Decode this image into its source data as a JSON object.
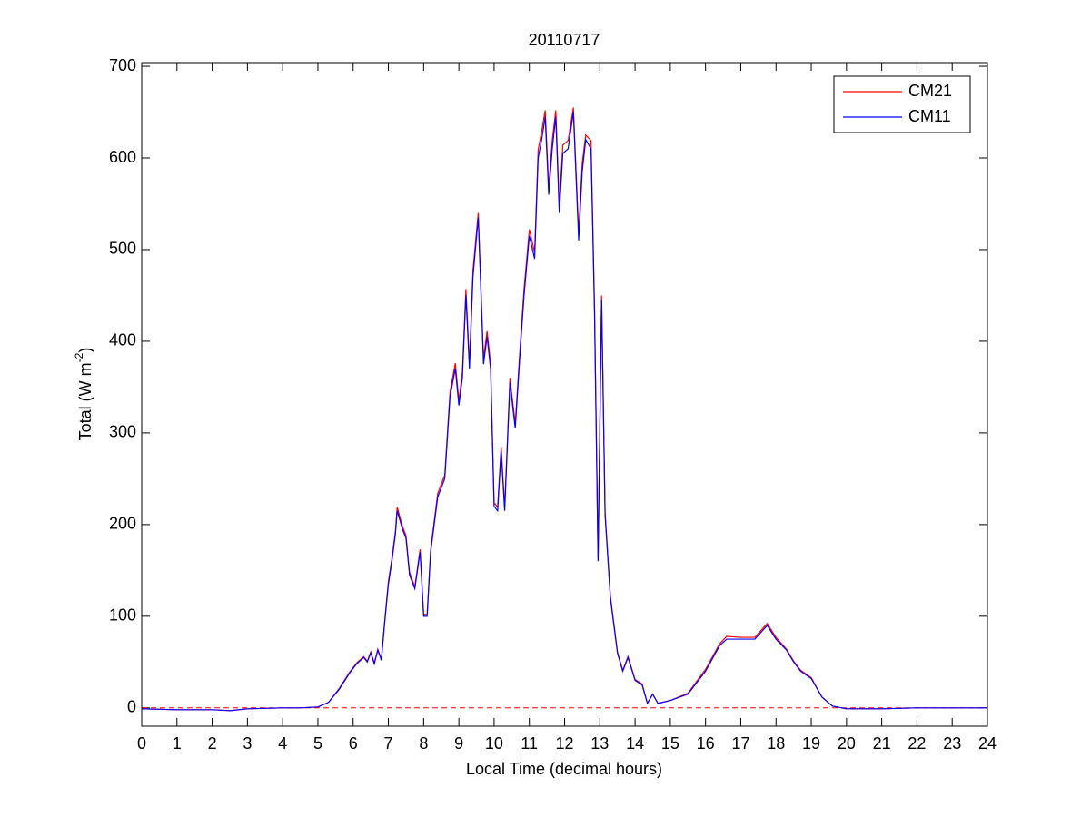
{
  "chart_data": {
    "type": "line",
    "title": "20110717",
    "xlabel": "Local Time (decimal hours)",
    "ylabel": {
      "text": "Total (W m",
      "superscript": "-2",
      "suffix": ")"
    },
    "x": [
      0,
      1,
      2,
      2.5,
      3,
      4,
      4.5,
      5,
      5.3,
      5.6,
      5.9,
      6.1,
      6.3,
      6.4,
      6.5,
      6.6,
      6.7,
      6.8,
      6.9,
      7.0,
      7.1,
      7.2,
      7.25,
      7.4,
      7.5,
      7.6,
      7.75,
      7.9,
      8.0,
      8.1,
      8.2,
      8.4,
      8.6,
      8.75,
      8.9,
      9.0,
      9.1,
      9.2,
      9.3,
      9.4,
      9.55,
      9.7,
      9.8,
      9.9,
      10.0,
      10.1,
      10.2,
      10.3,
      10.45,
      10.6,
      10.75,
      10.85,
      11.0,
      11.15,
      11.25,
      11.35,
      11.45,
      11.55,
      11.65,
      11.75,
      11.85,
      11.95,
      12.1,
      12.25,
      12.4,
      12.5,
      12.6,
      12.75,
      12.85,
      12.95,
      13.05,
      13.15,
      13.3,
      13.5,
      13.65,
      13.8,
      14.0,
      14.2,
      14.35,
      14.5,
      14.65,
      15.0,
      15.5,
      16.0,
      16.4,
      16.6,
      17.0,
      17.4,
      17.75,
      18.0,
      18.3,
      18.5,
      18.7,
      19.0,
      19.3,
      19.6,
      20,
      21,
      22,
      23,
      24
    ],
    "series": [
      {
        "name": "CM21",
        "color": "#ff0000",
        "values": [
          -1,
          -2,
          -2,
          -3,
          -1,
          0,
          0,
          1,
          6,
          21,
          39,
          49,
          56,
          51,
          61,
          49,
          64,
          53,
          97,
          138,
          163,
          193,
          219,
          198,
          188,
          148,
          132,
          173,
          102,
          102,
          173,
          234,
          254,
          345,
          376,
          335,
          366,
          457,
          376,
          477,
          540,
          381,
          411,
          376,
          224,
          219,
          285,
          219,
          360,
          310,
          401,
          457,
          522,
          497,
          609,
          629,
          652,
          568,
          619,
          652,
          548,
          614,
          619,
          655,
          518,
          594,
          625,
          619,
          437,
          163,
          450,
          213,
          122,
          61,
          41,
          56,
          31,
          26,
          5,
          15,
          5,
          8,
          16,
          42,
          70,
          78,
          77,
          77,
          92,
          77,
          64,
          51,
          41,
          33,
          12,
          2,
          -1,
          -1,
          0,
          0,
          0
        ]
      },
      {
        "name": "CM11",
        "color": "#0000ff",
        "values": [
          -1,
          -2,
          -2,
          -3,
          -1,
          0,
          0,
          1,
          6,
          20,
          38,
          48,
          55,
          50,
          60,
          48,
          63,
          52,
          95,
          135,
          160,
          190,
          215,
          195,
          185,
          145,
          130,
          170,
          100,
          100,
          170,
          230,
          250,
          340,
          370,
          330,
          360,
          450,
          370,
          470,
          535,
          375,
          405,
          370,
          220,
          215,
          280,
          215,
          355,
          305,
          395,
          450,
          515,
          490,
          600,
          620,
          645,
          560,
          610,
          645,
          540,
          605,
          610,
          650,
          510,
          585,
          620,
          610,
          430,
          160,
          445,
          210,
          120,
          60,
          40,
          55,
          30,
          25,
          5,
          15,
          5,
          8,
          15,
          40,
          68,
          75,
          75,
          75,
          90,
          75,
          63,
          50,
          40,
          32,
          12,
          2,
          -1,
          -1,
          0,
          0,
          0
        ]
      }
    ],
    "reference_lines": [
      {
        "y": 0,
        "color": "#ff0000",
        "dashed": true
      }
    ],
    "xlim": [
      0,
      24
    ],
    "xticks": [
      0,
      1,
      2,
      3,
      4,
      5,
      6,
      7,
      8,
      9,
      10,
      11,
      12,
      13,
      14,
      15,
      16,
      17,
      18,
      19,
      20,
      21,
      22,
      23,
      24
    ],
    "ylim": [
      -20,
      704
    ],
    "yticks": [
      0,
      100,
      200,
      300,
      400,
      500,
      600,
      700
    ],
    "grid": false,
    "legend": "top-right"
  }
}
